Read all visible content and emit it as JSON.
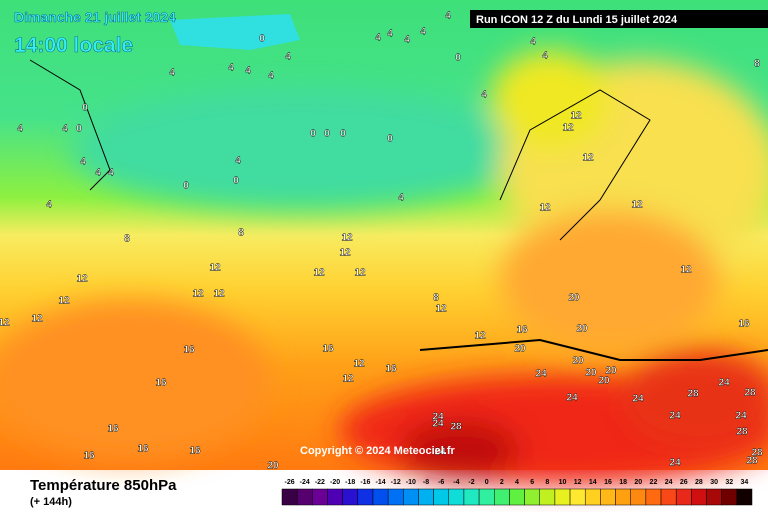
{
  "header": {
    "title": "Dimanche 21 juillet 2024",
    "subtitle": "14:00 locale",
    "run": "Run ICON 12 Z du Lundi 15 juillet 2024",
    "copyright": "Copyright © 2024 Meteociel.fr"
  },
  "legend": {
    "title": "Température 850hPa",
    "lead": "(+ 144h)",
    "ticks": [
      -26,
      -24,
      -22,
      -20,
      -18,
      -16,
      -14,
      -12,
      -10,
      -8,
      -6,
      -4,
      -2,
      0,
      2,
      4,
      6,
      8,
      10,
      12,
      14,
      16,
      18,
      20,
      22,
      24,
      26,
      28,
      30,
      32,
      34
    ],
    "colors": [
      "#3a0046",
      "#55006e",
      "#6a0096",
      "#5000b4",
      "#2a10d0",
      "#1030e6",
      "#0050f0",
      "#0070f5",
      "#0090f5",
      "#00b0f0",
      "#00c8e8",
      "#10dcd8",
      "#20e8c0",
      "#30f0a0",
      "#40f070",
      "#60f040",
      "#90f030",
      "#c0f020",
      "#e8f020",
      "#ffe830",
      "#ffd020",
      "#ffb818",
      "#ffa010",
      "#ff8810",
      "#ff6a10",
      "#f84818",
      "#e82818",
      "#d01010",
      "#a80808",
      "#700000",
      "#100000"
    ]
  },
  "map": {
    "labels": [
      0,
      4,
      4,
      4,
      4,
      4,
      0,
      4,
      4,
      8,
      4,
      4,
      4,
      4,
      4,
      4,
      0,
      4,
      4,
      0,
      12,
      12,
      0,
      0,
      0,
      0,
      4,
      4,
      4,
      4,
      0,
      0,
      12,
      4,
      4,
      8,
      8,
      12,
      12,
      12,
      12,
      12,
      12,
      12,
      12,
      12,
      12,
      12,
      12,
      12,
      12,
      8,
      12,
      20,
      20,
      16,
      12,
      16,
      16,
      16,
      20,
      12,
      20,
      20,
      24,
      12,
      16,
      20,
      20,
      16,
      24,
      28,
      24,
      28,
      24,
      16,
      24,
      24,
      28,
      24,
      24,
      28,
      16,
      16,
      16,
      24,
      28,
      20,
      24,
      28
    ]
  }
}
